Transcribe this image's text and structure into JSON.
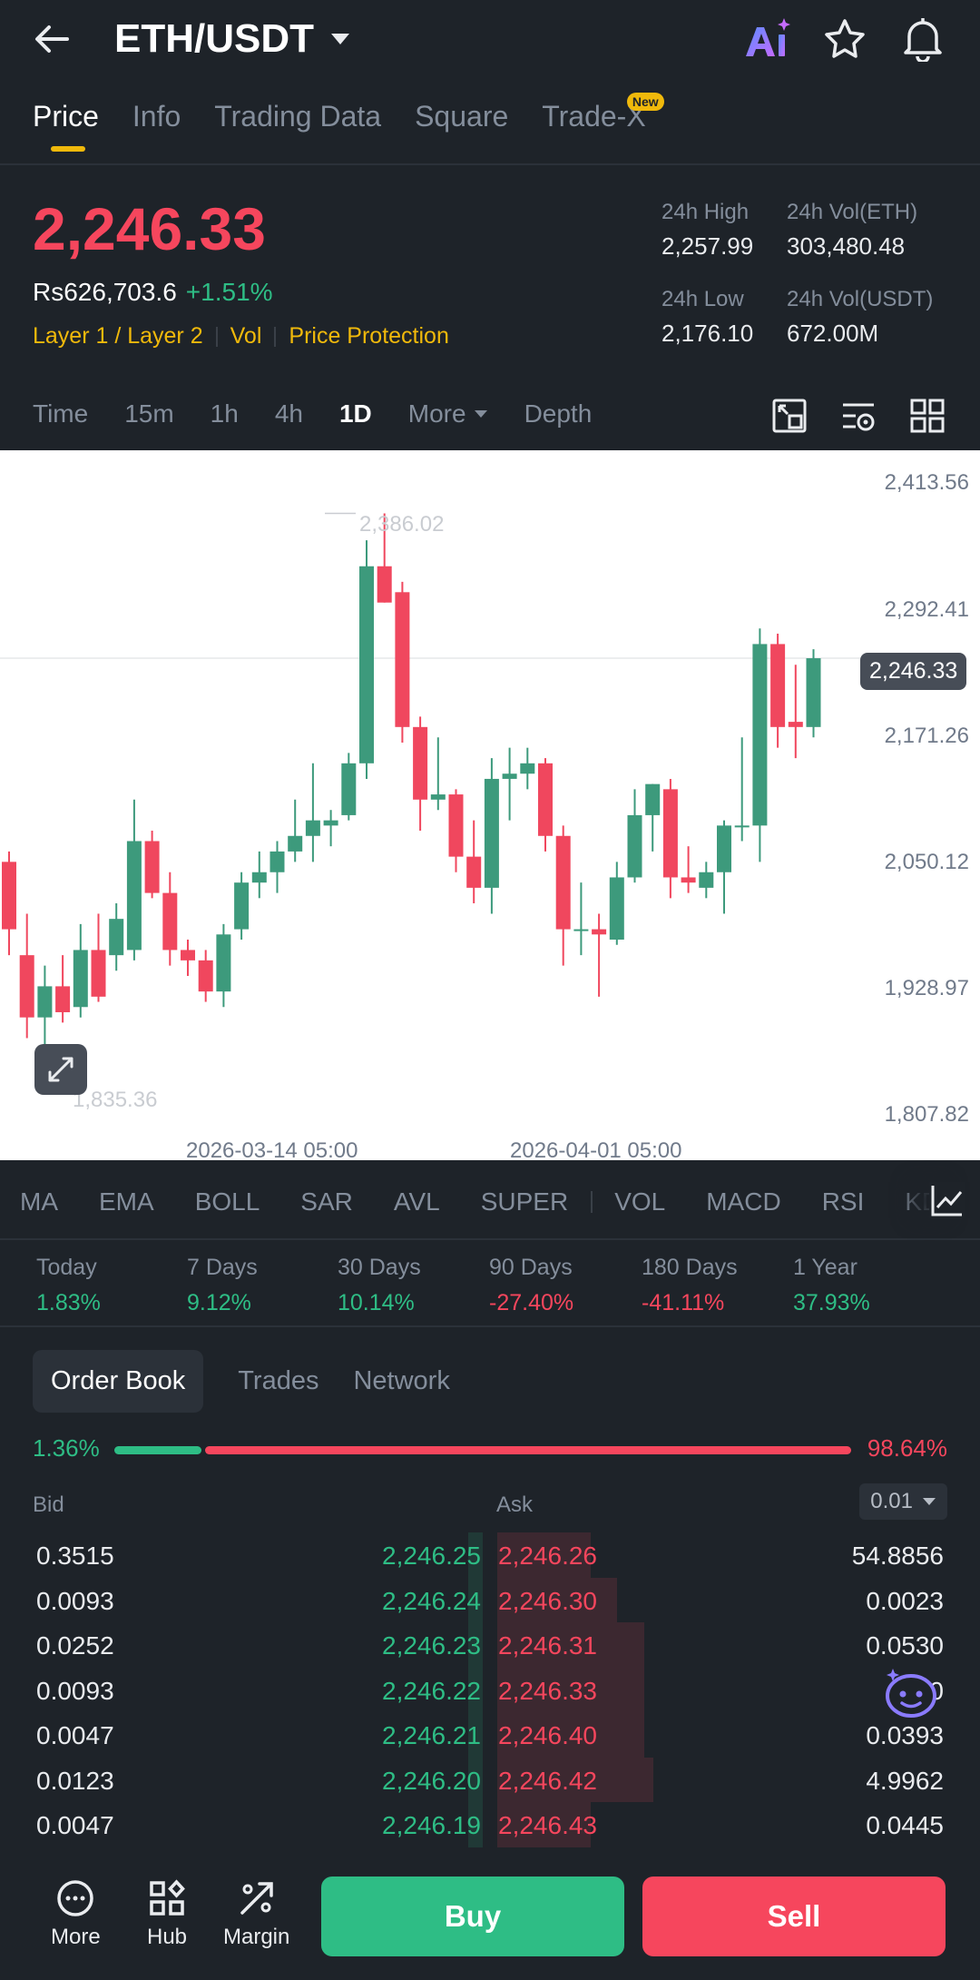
{
  "header": {
    "pair": "ETH/USDT"
  },
  "tabs": [
    {
      "label": "Price",
      "active": true
    },
    {
      "label": "Info"
    },
    {
      "label": "Trading Data"
    },
    {
      "label": "Square"
    },
    {
      "label": "Trade-X",
      "badge": "New"
    }
  ],
  "price": {
    "last": "2,246.33",
    "fiat": "Rs626,703.6",
    "change": "+1.51%",
    "tags": [
      "Layer 1 / Layer 2",
      "Vol",
      "Price Protection"
    ]
  },
  "stats": {
    "high_label": "24h High",
    "high": "2,257.99",
    "vol_eth_label": "24h Vol(ETH)",
    "vol_eth": "303,480.48",
    "low_label": "24h Low",
    "low": "2,176.10",
    "vol_usdt_label": "24h Vol(USDT)",
    "vol_usdt": "672.00M"
  },
  "timeframes": [
    "Time",
    "15m",
    "1h",
    "4h",
    "1D",
    "More",
    "Depth"
  ],
  "active_timeframe": "1D",
  "chart_data": {
    "type": "candlestick",
    "y_ticks": [
      "2,413.56",
      "2,292.41",
      "2,171.26",
      "2,050.12",
      "1,928.97",
      "1,807.82"
    ],
    "ylim": [
      1807.82,
      2413.56
    ],
    "x_ticks": [
      "2026-03-14 05:00",
      "2026-04-01 05:00"
    ],
    "high_label": "2,386.02",
    "low_label": "1,835.36",
    "current_price": "2,246.33",
    "candles": [
      {
        "o": 2050,
        "h": 2060,
        "l": 1960,
        "c": 1985
      },
      {
        "o": 1960,
        "h": 2000,
        "l": 1880,
        "c": 1900
      },
      {
        "o": 1900,
        "h": 1950,
        "l": 1835,
        "c": 1930
      },
      {
        "o": 1930,
        "h": 1960,
        "l": 1895,
        "c": 1905
      },
      {
        "o": 1910,
        "h": 1990,
        "l": 1900,
        "c": 1965
      },
      {
        "o": 1965,
        "h": 2000,
        "l": 1915,
        "c": 1920
      },
      {
        "o": 1960,
        "h": 2010,
        "l": 1945,
        "c": 1995
      },
      {
        "o": 1965,
        "h": 2110,
        "l": 1955,
        "c": 2070
      },
      {
        "o": 2070,
        "h": 2080,
        "l": 2015,
        "c": 2020
      },
      {
        "o": 2020,
        "h": 2040,
        "l": 1950,
        "c": 1965
      },
      {
        "o": 1965,
        "h": 1975,
        "l": 1940,
        "c": 1955
      },
      {
        "o": 1955,
        "h": 1965,
        "l": 1915,
        "c": 1925
      },
      {
        "o": 1925,
        "h": 1990,
        "l": 1910,
        "c": 1980
      },
      {
        "o": 1985,
        "h": 2040,
        "l": 1975,
        "c": 2030
      },
      {
        "o": 2030,
        "h": 2060,
        "l": 2015,
        "c": 2040
      },
      {
        "o": 2040,
        "h": 2070,
        "l": 2020,
        "c": 2060
      },
      {
        "o": 2060,
        "h": 2110,
        "l": 2050,
        "c": 2075
      },
      {
        "o": 2075,
        "h": 2145,
        "l": 2050,
        "c": 2090
      },
      {
        "o": 2085,
        "h": 2100,
        "l": 2065,
        "c": 2090
      },
      {
        "o": 2095,
        "h": 2155,
        "l": 2090,
        "c": 2145
      },
      {
        "o": 2145,
        "h": 2360,
        "l": 2130,
        "c": 2335
      },
      {
        "o": 2335,
        "h": 2386,
        "l": 2300,
        "c": 2300
      },
      {
        "o": 2310,
        "h": 2320,
        "l": 2165,
        "c": 2180
      },
      {
        "o": 2180,
        "h": 2190,
        "l": 2080,
        "c": 2110
      },
      {
        "o": 2110,
        "h": 2170,
        "l": 2100,
        "c": 2115
      },
      {
        "o": 2115,
        "h": 2120,
        "l": 2040,
        "c": 2055
      },
      {
        "o": 2055,
        "h": 2090,
        "l": 2010,
        "c": 2025
      },
      {
        "o": 2025,
        "h": 2150,
        "l": 2000,
        "c": 2130
      },
      {
        "o": 2130,
        "h": 2160,
        "l": 2090,
        "c": 2135
      },
      {
        "o": 2135,
        "h": 2160,
        "l": 2120,
        "c": 2145
      },
      {
        "o": 2145,
        "h": 2150,
        "l": 2060,
        "c": 2075
      },
      {
        "o": 2075,
        "h": 2085,
        "l": 1950,
        "c": 1985
      },
      {
        "o": 1985,
        "h": 2030,
        "l": 1960,
        "c": 1985
      },
      {
        "o": 1985,
        "h": 2000,
        "l": 1920,
        "c": 1980
      },
      {
        "o": 1975,
        "h": 2050,
        "l": 1970,
        "c": 2035
      },
      {
        "o": 2035,
        "h": 2120,
        "l": 2030,
        "c": 2095
      },
      {
        "o": 2095,
        "h": 2125,
        "l": 2060,
        "c": 2125
      },
      {
        "o": 2120,
        "h": 2130,
        "l": 2015,
        "c": 2035
      },
      {
        "o": 2035,
        "h": 2065,
        "l": 2020,
        "c": 2030
      },
      {
        "o": 2025,
        "h": 2050,
        "l": 2015,
        "c": 2040
      },
      {
        "o": 2040,
        "h": 2090,
        "l": 2000,
        "c": 2085
      },
      {
        "o": 2085,
        "h": 2170,
        "l": 2070,
        "c": 2085
      },
      {
        "o": 2085,
        "h": 2275,
        "l": 2050,
        "c": 2260
      },
      {
        "o": 2260,
        "h": 2270,
        "l": 2160,
        "c": 2180
      },
      {
        "o": 2185,
        "h": 2240,
        "l": 2150,
        "c": 2180
      },
      {
        "o": 2180,
        "h": 2255,
        "l": 2170,
        "c": 2246.33
      }
    ]
  },
  "indicators": [
    "MA",
    "EMA",
    "BOLL",
    "SAR",
    "AVL",
    "SUPER",
    "VOL",
    "MACD",
    "RSI",
    "KDJ"
  ],
  "performance": [
    {
      "label": "Today",
      "value": "1.83%",
      "dir": "up"
    },
    {
      "label": "7 Days",
      "value": "9.12%",
      "dir": "up"
    },
    {
      "label": "30 Days",
      "value": "10.14%",
      "dir": "up"
    },
    {
      "label": "90 Days",
      "value": "-27.40%",
      "dir": "down"
    },
    {
      "label": "180 Days",
      "value": "-41.11%",
      "dir": "down"
    },
    {
      "label": "1 Year",
      "value": "37.93%",
      "dir": "up"
    }
  ],
  "orderbook": {
    "tabs": [
      "Order Book",
      "Trades",
      "Network"
    ],
    "bid_ratio": "1.36%",
    "ask_ratio": "98.64%",
    "bid_label": "Bid",
    "ask_label": "Ask",
    "precision": "0.01",
    "rows": [
      {
        "bid_qty": "0.3515",
        "bid_price": "2,246.25",
        "ask_price": "2,246.26",
        "ask_qty": "54.8856",
        "ask_depth": 0.21
      },
      {
        "bid_qty": "0.0093",
        "bid_price": "2,246.24",
        "ask_price": "2,246.30",
        "ask_qty": "0.0023",
        "ask_depth": 0.27
      },
      {
        "bid_qty": "0.0252",
        "bid_price": "2,246.23",
        "ask_price": "2,246.31",
        "ask_qty": "0.0530",
        "ask_depth": 0.33
      },
      {
        "bid_qty": "0.0093",
        "bid_price": "2,246.22",
        "ask_price": "2,246.33",
        "ask_qty": "0",
        "ask_depth": 0.33
      },
      {
        "bid_qty": "0.0047",
        "bid_price": "2,246.21",
        "ask_price": "2,246.40",
        "ask_qty": "0.0393",
        "ask_depth": 0.33
      },
      {
        "bid_qty": "0.0123",
        "bid_price": "2,246.20",
        "ask_price": "2,246.42",
        "ask_qty": "4.9962",
        "ask_depth": 0.35
      },
      {
        "bid_qty": "0.0047",
        "bid_price": "2,246.19",
        "ask_price": "2,246.43",
        "ask_qty": "0.0445",
        "ask_depth": 0.21
      }
    ]
  },
  "bottom_bar": {
    "more": "More",
    "hub": "Hub",
    "margin": "Margin",
    "buy": "Buy",
    "sell": "Sell"
  },
  "colors": {
    "up": "#2ebd85",
    "down": "#f6465d",
    "accent": "#f0b90b",
    "bg": "#1e2329"
  }
}
